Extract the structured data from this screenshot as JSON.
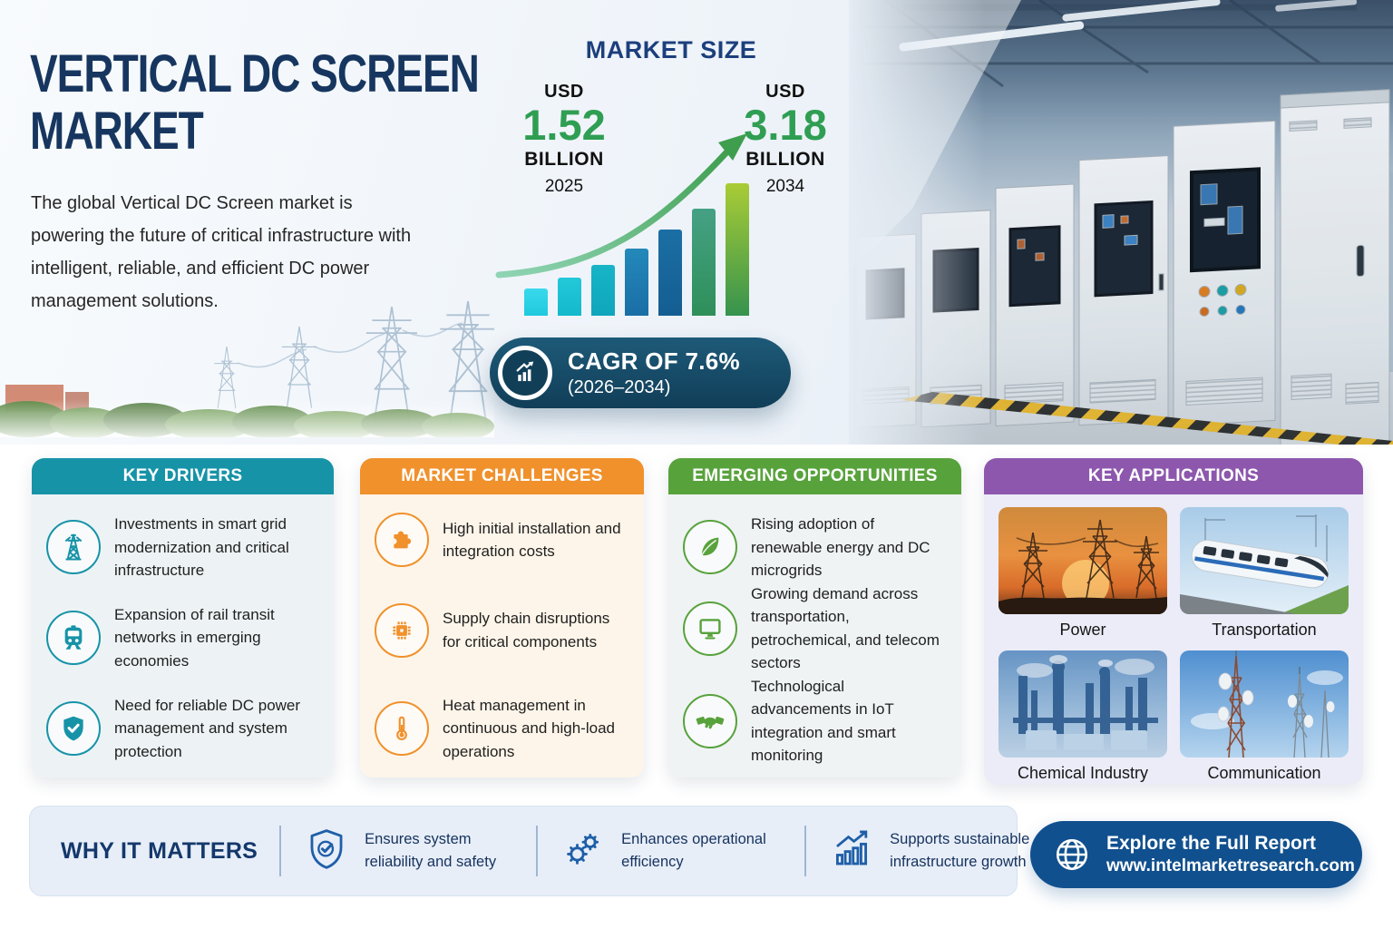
{
  "hero": {
    "title_line1": "VERTICAL DC SCREEN",
    "title_line2": "MARKET",
    "description": "The global Vertical DC Screen market is powering the future of critical infrastructure with intelligent, reliable, and efficient DC power management solutions."
  },
  "market_size": {
    "heading": "MARKET SIZE",
    "start": {
      "currency": "USD",
      "value": "1.52",
      "unit": "BILLION",
      "year": "2025"
    },
    "end": {
      "currency": "USD",
      "value": "3.18",
      "unit": "BILLION",
      "year": "2034"
    }
  },
  "cagr": {
    "line1": "CAGR OF 7.6%",
    "line2": "(2026–2034)"
  },
  "chart_data": {
    "type": "bar",
    "title": "MARKET SIZE",
    "x_labels": [
      "2025",
      "2034"
    ],
    "annotated_points": [
      {
        "year": "2025",
        "value_usd_billion": 1.52
      },
      {
        "year": "2034",
        "value_usd_billion": 3.18
      }
    ],
    "cagr_percent": 7.6,
    "cagr_period": "2026–2034",
    "bars_relative_height": [
      30,
      42,
      56,
      74,
      95,
      118,
      146
    ],
    "bar_styles": [
      [
        "#3ad9ec",
        "#1fc9de"
      ],
      [
        "#23c8d9",
        "#14b9cc"
      ],
      [
        "#17b4c7",
        "#0fa6bc"
      ],
      [
        "#2489ba",
        "#1a6ea6"
      ],
      [
        "#1b6fa4",
        "#145d92"
      ],
      [
        "#45a184",
        "#2f8f5a"
      ],
      [
        "#a9cc35",
        "#36934e"
      ]
    ],
    "trend_arrow": true,
    "axes_visible": false,
    "legend": "none"
  },
  "cards": [
    {
      "title": "KEY DRIVERS",
      "accent": "#1793a8",
      "items": [
        {
          "icon": "transmission-tower-icon",
          "text": "Investments in smart grid modernization and critical infrastructure"
        },
        {
          "icon": "train-icon",
          "text": "Expansion of rail transit networks in emerging economies"
        },
        {
          "icon": "shield-check-icon",
          "text": "Need for reliable DC power management and system protection"
        }
      ]
    },
    {
      "title": "MARKET CHALLENGES",
      "accent": "#f0912c",
      "items": [
        {
          "icon": "puzzle-icon",
          "text": "High initial installation and integration costs"
        },
        {
          "icon": "chip-icon",
          "text": "Supply chain disruptions for critical components"
        },
        {
          "icon": "thermometer-icon",
          "text": "Heat management in continuous and high-load operations"
        }
      ]
    },
    {
      "title": "EMERGING OPPORTUNITIES",
      "accent": "#58a23c",
      "items": [
        {
          "icon": "leaf-icon",
          "text": "Rising adoption of renewable energy and DC microgrids"
        },
        {
          "icon": "monitor-icon",
          "text": "Growing demand across transportation, petrochemical, and telecom sectors"
        },
        {
          "icon": "handshake-icon",
          "text": "Technological advancements in IoT integration and smart monitoring"
        }
      ]
    },
    {
      "title": "KEY APPLICATIONS",
      "accent": "#8d57ad",
      "apps": [
        {
          "image": "power-photo",
          "label": "Power"
        },
        {
          "image": "transportation-photo",
          "label": "Transportation"
        },
        {
          "image": "chemical-industry-photo",
          "label": "Chemical Industry"
        },
        {
          "image": "communication-photo",
          "label": "Communication"
        }
      ]
    }
  ],
  "why": {
    "heading": "WHY IT MATTERS",
    "items": [
      {
        "icon": "shield-check-icon",
        "text": "Ensures system reliability and safety"
      },
      {
        "icon": "gears-icon",
        "text": "Enhances operational efficiency"
      },
      {
        "icon": "growth-chart-icon",
        "text": "Supports sustainable infrastructure growth"
      }
    ]
  },
  "explore": {
    "line1": "Explore the Full Report",
    "line2": "www.intelmarketresearch.com"
  },
  "colors": {
    "navy_heading": "#1c3f7d",
    "title_navy": "#17365f",
    "value_green": "#2f9e53",
    "cagr_pill": "#164e6b",
    "explore_button": "#11508e",
    "why_bar_bg": "#e7eef8",
    "why_icon_blue": "#1f5fa8"
  }
}
